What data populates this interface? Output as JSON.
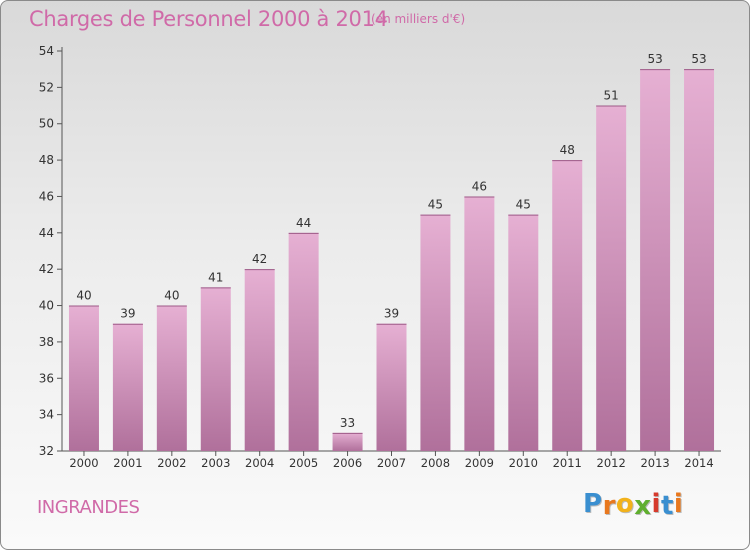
{
  "header": {
    "title": "Charges de Personnel 2000 à 2014",
    "subtitle": "(en milliers d'€)"
  },
  "footer": {
    "commune": "INGRANDES",
    "logo_text": "Proxiti",
    "logo_letters": [
      "P",
      "r",
      "o",
      "x",
      "i",
      "t",
      "i"
    ]
  },
  "colors": {
    "bar_top": "#e6b0d3",
    "bar_bottom": "#b0709b",
    "accent": "#d06aa8",
    "logo": [
      "#3a8fd0",
      "#e8781e",
      "#f2b21b",
      "#5fae2e",
      "#d63a2c",
      "#3a8fd0",
      "#e8781e"
    ]
  },
  "chart_data": {
    "type": "bar",
    "title": "Charges de Personnel 2000 à 2014",
    "subtitle": "(en milliers d'€)",
    "categories": [
      "2000",
      "2001",
      "2002",
      "2003",
      "2004",
      "2005",
      "2006",
      "2007",
      "2008",
      "2009",
      "2010",
      "2011",
      "2012",
      "2013",
      "2014"
    ],
    "values": [
      40,
      39,
      40,
      41,
      42,
      44,
      33,
      39,
      45,
      46,
      45,
      48,
      51,
      53,
      53
    ],
    "yticks": [
      32,
      34,
      36,
      38,
      40,
      42,
      44,
      46,
      48,
      50,
      52,
      54
    ],
    "ylim": [
      32,
      54
    ],
    "grid": false,
    "data_labels": true
  }
}
